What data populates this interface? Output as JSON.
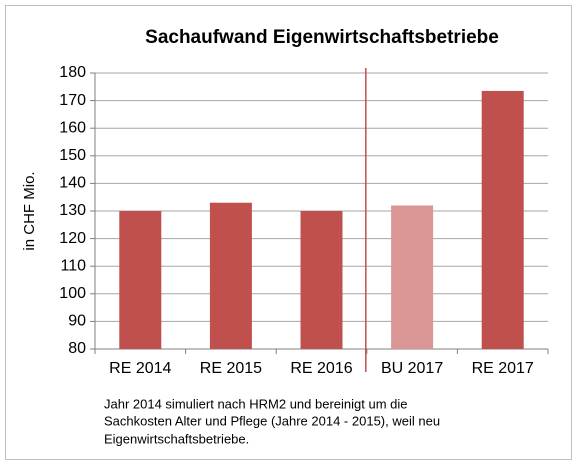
{
  "chart_data": {
    "type": "bar",
    "title": "Sachaufwand Eigenwirtschaftsbetriebe",
    "y_label": "in CHF Mio.",
    "categories": [
      "RE 2014",
      "RE 2015",
      "RE 2016",
      "BU 2017",
      "RE 2017"
    ],
    "values": [
      130,
      133,
      130,
      132,
      173.5
    ],
    "colors": [
      "#c0504d",
      "#c0504d",
      "#c0504d",
      "#d99694",
      "#c0504d"
    ],
    "ylim": [
      80,
      180
    ],
    "yticks": [
      80,
      90,
      100,
      110,
      120,
      130,
      140,
      150,
      160,
      170,
      180
    ],
    "grid": true,
    "note": [
      "Jahr 2014 simuliert nach HRM2 und bereinigt um die",
      "Sachkosten Alter und Pflege (Jahre 2014 - 2015), weil  neu",
      "Eigenwirtschaftsbetriebe."
    ]
  }
}
